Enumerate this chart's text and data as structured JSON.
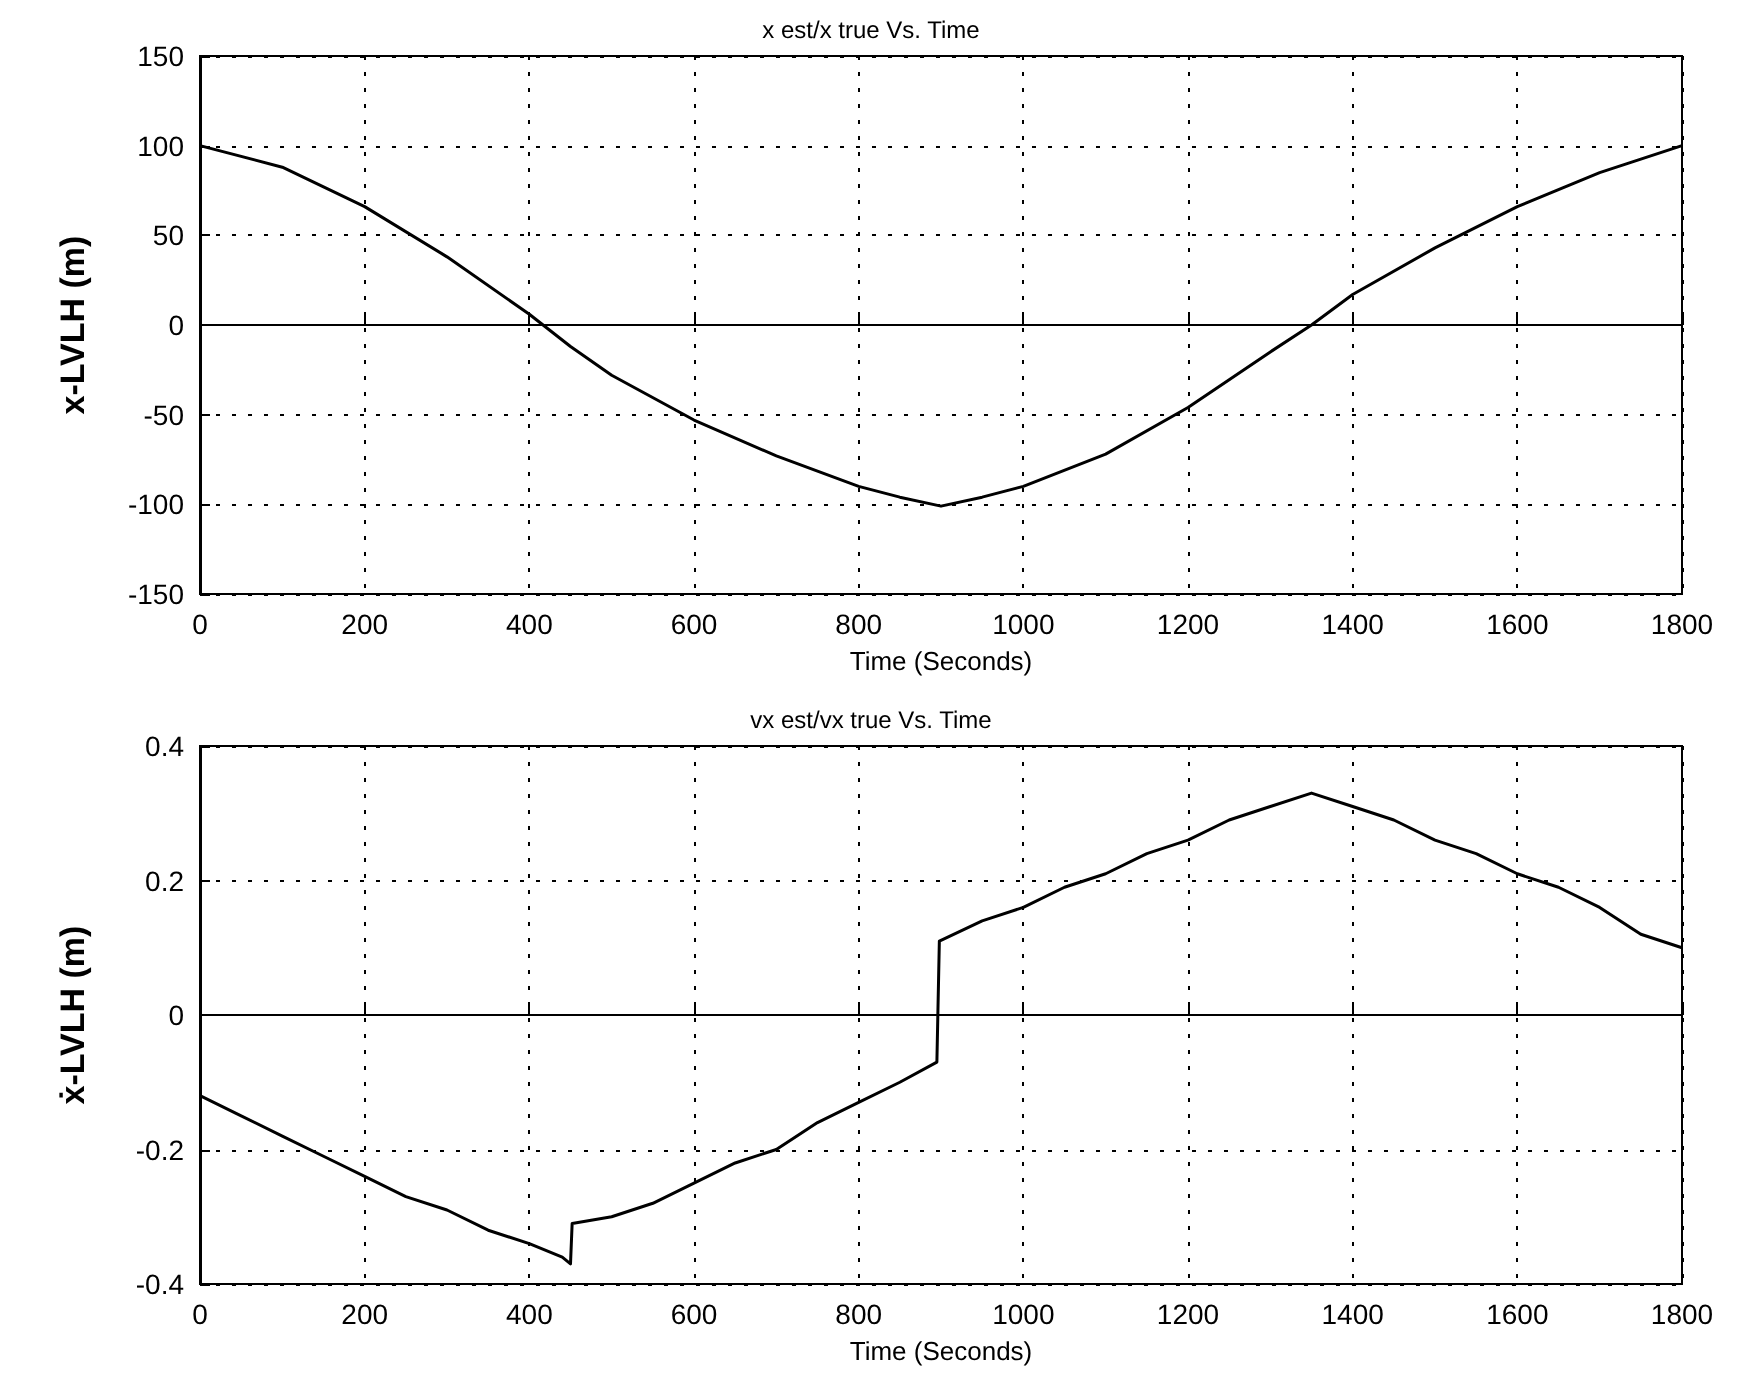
{
  "chart_data": [
    {
      "type": "line",
      "title": "x est/x true Vs. Time",
      "xlabel": "Time (Seconds)",
      "ylabel": "x-LVLH (m)",
      "grid": true,
      "marker": "none",
      "line_style": "solid",
      "xlim": [
        0,
        1800
      ],
      "xticks": [
        0,
        200,
        400,
        600,
        800,
        1000,
        1200,
        1400,
        1600,
        1800
      ],
      "ylim": [
        -150,
        150
      ],
      "yticks": [
        -150,
        -100,
        -50,
        0,
        50,
        100,
        150
      ],
      "series": [
        {
          "color": "#000000",
          "x": [
            0,
            100,
            200,
            300,
            400,
            450,
            500,
            600,
            700,
            800,
            850,
            900,
            950,
            1000,
            1100,
            1200,
            1300,
            1350,
            1400,
            1500,
            1600,
            1700,
            1800
          ],
          "values": [
            100,
            88,
            66,
            38,
            6,
            -12,
            -28,
            -53,
            -73,
            -90,
            -96,
            -101,
            -96,
            -90,
            -72,
            -46,
            -15,
            0,
            17,
            43,
            66,
            85,
            100
          ]
        }
      ]
    },
    {
      "type": "line",
      "title": "vx est/vx true Vs. Time",
      "xlabel": "Time (Seconds)",
      "ylabel": "ẋ-LVLH (m)",
      "grid": true,
      "marker": "none",
      "line_style": "solid",
      "xlim": [
        0,
        1800
      ],
      "xticks": [
        0,
        200,
        400,
        600,
        800,
        1000,
        1200,
        1400,
        1600,
        1800
      ],
      "ylim": [
        -0.4,
        0.4
      ],
      "yticks": [
        -0.4,
        -0.2,
        0,
        0.2,
        0.4
      ],
      "series": [
        {
          "color": "#000000",
          "x": [
            0,
            50,
            100,
            150,
            200,
            250,
            300,
            350,
            400,
            440,
            450,
            452,
            500,
            550,
            600,
            650,
            700,
            750,
            800,
            850,
            895,
            898,
            950,
            1000,
            1050,
            1100,
            1150,
            1200,
            1250,
            1300,
            1350,
            1400,
            1450,
            1500,
            1550,
            1600,
            1650,
            1700,
            1750,
            1800
          ],
          "values": [
            -0.12,
            -0.15,
            -0.18,
            -0.21,
            -0.24,
            -0.27,
            -0.29,
            -0.32,
            -0.34,
            -0.36,
            -0.37,
            -0.31,
            -0.3,
            -0.28,
            -0.25,
            -0.22,
            -0.2,
            -0.16,
            -0.13,
            -0.1,
            -0.07,
            0.11,
            0.14,
            0.16,
            0.19,
            0.21,
            0.24,
            0.26,
            0.29,
            0.31,
            0.33,
            0.31,
            0.29,
            0.26,
            0.24,
            0.21,
            0.19,
            0.16,
            0.12,
            0.1
          ]
        }
      ]
    }
  ]
}
